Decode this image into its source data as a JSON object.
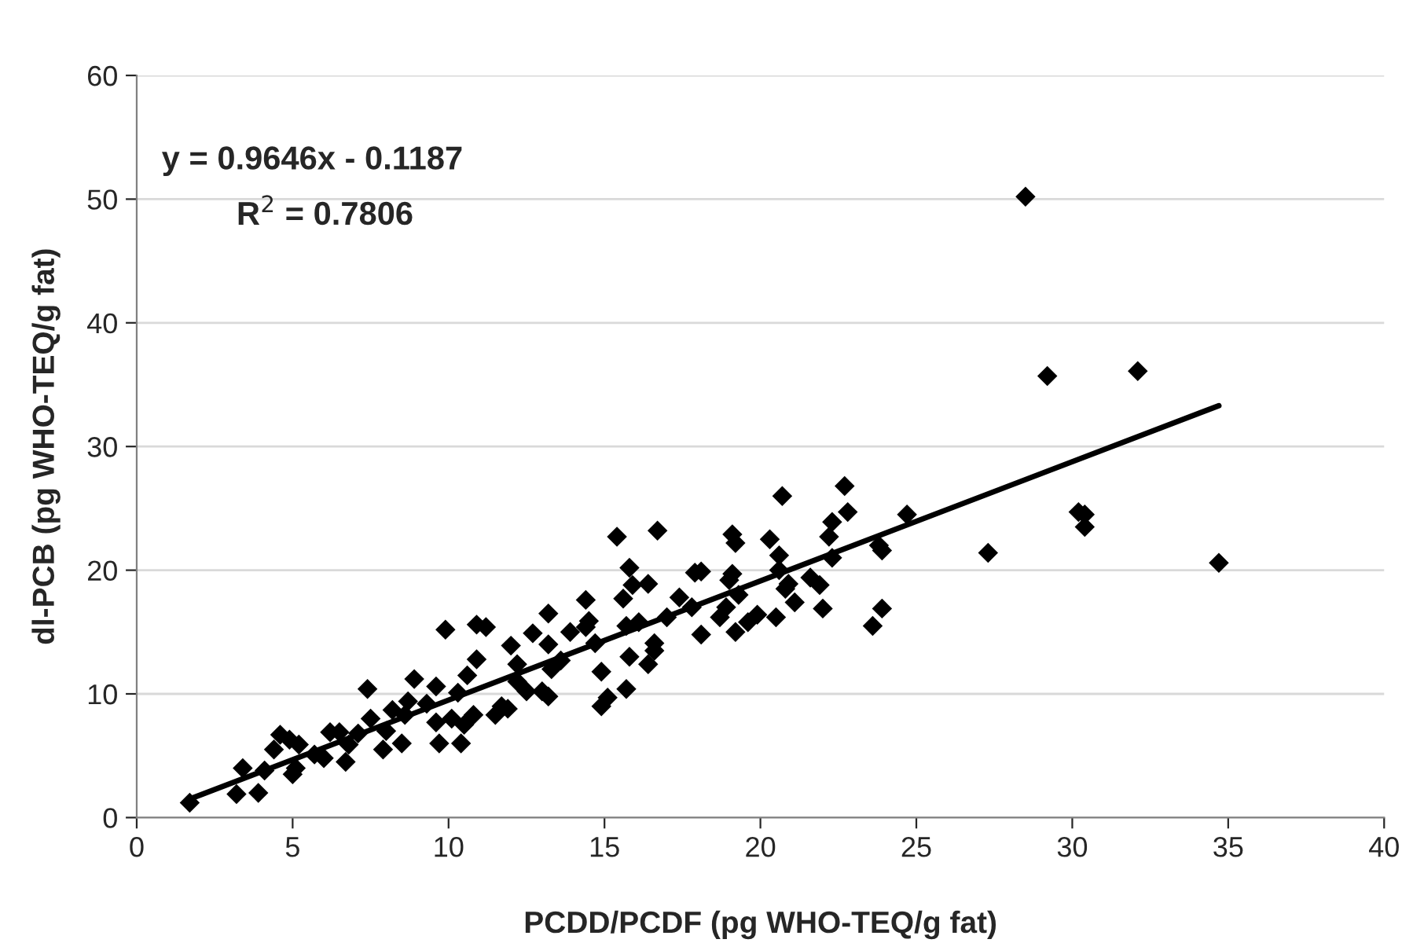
{
  "chart_data": {
    "type": "scatter",
    "xlabel": "PCDD/PCDF (pg WHO-TEQ/g fat)",
    "ylabel": "dl-PCB (pg WHO-TEQ/g fat)",
    "annotations": [
      "y = 0.9646x - 0.1187",
      "R$^{2}$ = 0.7806"
    ],
    "xlim": [
      0,
      40
    ],
    "xticks": [
      0,
      5,
      10,
      15,
      20,
      25,
      30,
      35,
      40
    ],
    "ylim": [
      0,
      60
    ],
    "yticks": [
      0,
      10,
      20,
      30,
      40,
      50,
      60
    ],
    "grid": "y",
    "legend": false,
    "series": [
      {
        "color": "#000000",
        "marker": "diamond",
        "x": [
          28.5,
          29.2,
          32.1,
          34.7,
          27.3,
          30.2,
          30.4,
          30.4,
          24.7,
          23.8,
          23.9,
          23.6,
          23.9,
          22.7,
          22.8,
          22.3,
          22.2,
          22.3,
          22.0,
          21.6,
          21.9,
          20.7,
          20.3,
          20.6,
          20.6,
          20.8,
          20.9,
          21.1,
          20.5,
          19.1,
          19.2,
          19.1,
          19.0,
          19.3,
          18.9,
          19.2,
          19.6,
          19.9,
          18.7,
          18.1,
          17.9,
          17.4,
          17.8,
          18.1,
          17.0,
          16.7,
          16.4,
          16.1,
          16.6,
          16.4,
          16.6,
          15.8,
          15.6,
          15.9,
          15.7,
          15.8,
          15.7,
          15.4,
          15.1,
          14.9,
          14.9,
          14.4,
          14.5,
          14.4,
          14.7,
          13.9,
          13.6,
          13.2,
          13.2,
          13.3,
          13.0,
          13.2,
          12.7,
          12.2,
          12.0,
          12.2,
          11.7,
          11.5,
          11.9,
          12.5,
          11.2,
          10.9,
          10.9,
          10.6,
          10.8,
          10.5,
          10.3,
          10.1,
          10.4,
          9.9,
          9.6,
          9.7,
          9.6,
          9.3,
          8.9,
          8.7,
          8.6,
          8.5,
          8.2,
          8.0,
          7.9,
          7.4,
          7.5,
          7.1,
          6.8,
          6.7,
          6.5,
          6.2,
          6.0,
          5.7,
          5.2,
          5.1,
          5.0,
          4.9,
          4.6,
          4.4,
          4.1,
          3.9,
          3.4,
          3.2,
          1.7
        ],
        "values": [
          50.2,
          35.7,
          36.1,
          20.6,
          21.4,
          24.7,
          24.5,
          23.5,
          24.5,
          22.0,
          21.6,
          15.5,
          16.9,
          26.8,
          24.7,
          23.9,
          22.7,
          21.0,
          16.9,
          19.4,
          18.8,
          26.0,
          22.5,
          21.2,
          20.0,
          18.5,
          18.9,
          17.4,
          16.2,
          22.9,
          22.2,
          19.7,
          19.2,
          18.0,
          17.0,
          15.0,
          15.8,
          16.4,
          16.2,
          19.9,
          19.8,
          17.8,
          17.0,
          14.8,
          16.2,
          23.2,
          18.9,
          15.8,
          13.5,
          12.4,
          14.1,
          20.2,
          17.7,
          18.8,
          15.5,
          13.0,
          10.4,
          22.7,
          9.7,
          9.0,
          11.8,
          17.6,
          15.9,
          15.4,
          14.1,
          15.0,
          12.7,
          16.5,
          14.0,
          12.0,
          10.2,
          9.8,
          14.9,
          12.4,
          13.9,
          11.0,
          9.0,
          8.3,
          8.8,
          10.2,
          15.4,
          15.6,
          12.8,
          11.5,
          8.3,
          7.5,
          10.1,
          8.0,
          6.0,
          15.2,
          10.6,
          6.0,
          7.7,
          9.2,
          11.2,
          9.4,
          8.3,
          6.0,
          8.7,
          7.0,
          5.5,
          10.4,
          8.0,
          6.8,
          5.9,
          4.5,
          6.9,
          6.9,
          4.8,
          5.1,
          5.9,
          4.0,
          3.5,
          6.3,
          6.7,
          5.5,
          3.8,
          2.0,
          4.0,
          1.9,
          1.2
        ]
      },
      {
        "type": "line",
        "color": "#000000",
        "x": [
          1.7,
          34.7
        ],
        "values": [
          1.5,
          33.3
        ]
      }
    ]
  }
}
